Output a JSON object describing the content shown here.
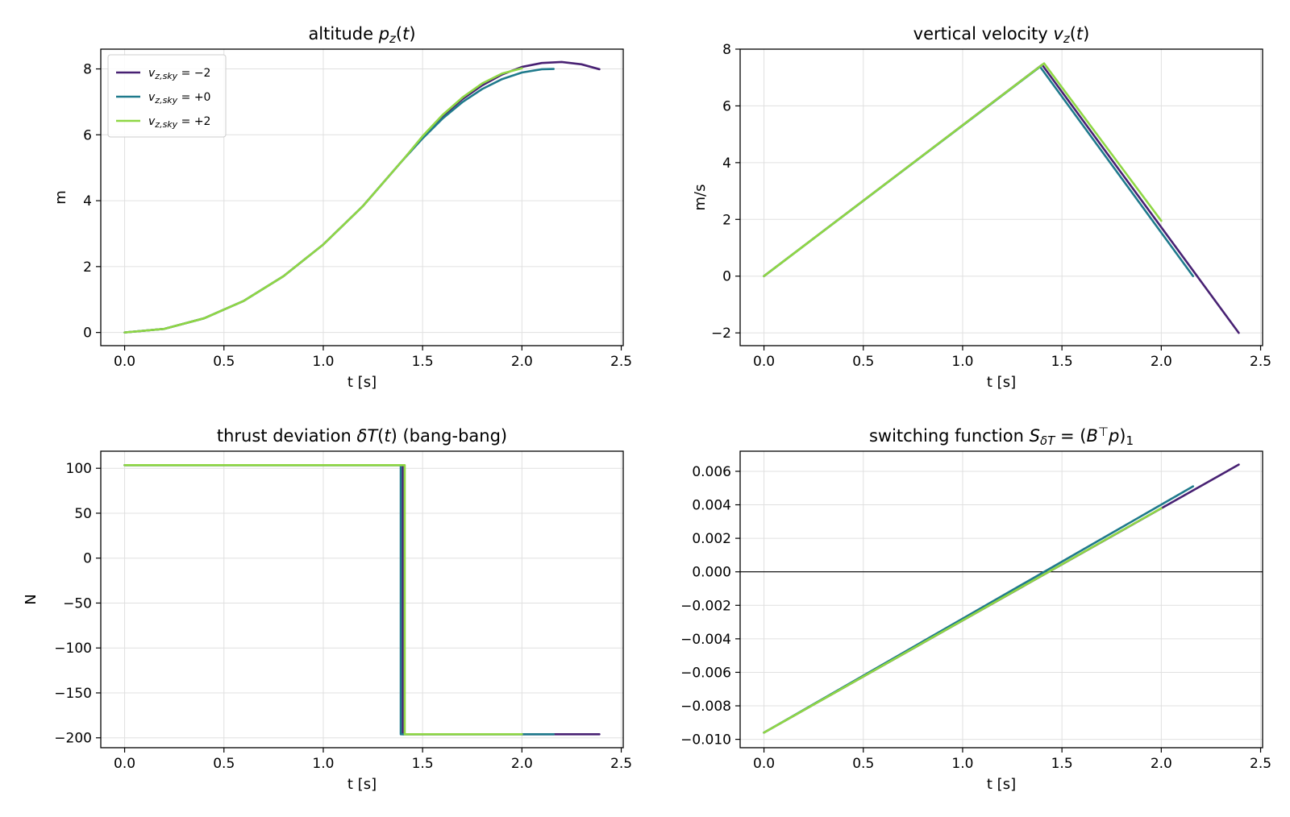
{
  "colors": {
    "vz_m2": "#482173",
    "vz_0": "#1f7a8c",
    "vz_p2": "#8fd744",
    "grid": "#e0e0e0",
    "zero_line": "#000000"
  },
  "chart_data": [
    {
      "type": "line",
      "title": "altitude p_z(t)",
      "title_parts": [
        {
          "text": "altitude ",
          "italic": false,
          "sub": false
        },
        {
          "text": "p",
          "italic": true,
          "sub": false
        },
        {
          "text": "z",
          "italic": true,
          "sub": true
        },
        {
          "text": "(",
          "italic": false,
          "sub": false
        },
        {
          "text": "t",
          "italic": true,
          "sub": false
        },
        {
          "text": ")",
          "italic": false,
          "sub": false
        }
      ],
      "xlabel": "t [s]",
      "ylabel": "m",
      "xlim": [
        -0.12,
        2.51
      ],
      "ylim": [
        -0.4,
        8.6
      ],
      "xticks": [
        0,
        0.5,
        1,
        1.5,
        2,
        2.5
      ],
      "xtick_labels": [
        "0.0",
        "0.5",
        "1.0",
        "1.5",
        "2.0",
        "2.5"
      ],
      "yticks": [
        0,
        2,
        4,
        6,
        8
      ],
      "ytick_labels": [
        "0",
        "2",
        "4",
        "6",
        "8"
      ],
      "grid": true,
      "legend": "top-left",
      "series": [
        {
          "name": "v_z,sky = −2",
          "color_key": "vz_m2",
          "x": [
            0,
            0.2,
            0.4,
            0.6,
            0.8,
            1.0,
            1.2,
            1.4,
            1.5,
            1.6,
            1.7,
            1.8,
            1.9,
            2.0,
            2.1,
            2.2,
            2.3,
            2.39
          ],
          "y": [
            0,
            0.11,
            0.43,
            0.96,
            1.71,
            2.67,
            3.84,
            5.23,
            5.94,
            6.56,
            7.08,
            7.5,
            7.83,
            8.06,
            8.18,
            8.21,
            8.14,
            7.99
          ]
        },
        {
          "name": "v_z,sky = +0",
          "color_key": "vz_0",
          "x": [
            0,
            0.2,
            0.4,
            0.6,
            0.8,
            1.0,
            1.2,
            1.39,
            1.5,
            1.6,
            1.7,
            1.8,
            1.9,
            2.0,
            2.1,
            2.16
          ],
          "y": [
            0,
            0.11,
            0.43,
            0.96,
            1.71,
            2.67,
            3.84,
            5.16,
            5.89,
            6.49,
            6.99,
            7.39,
            7.69,
            7.89,
            7.99,
            8.0
          ]
        },
        {
          "name": "v_z,sky = +2",
          "color_key": "vz_p2",
          "x": [
            0,
            0.2,
            0.4,
            0.6,
            0.8,
            1.0,
            1.2,
            1.41,
            1.5,
            1.6,
            1.7,
            1.8,
            1.9,
            2.0
          ],
          "y": [
            0,
            0.11,
            0.43,
            0.96,
            1.71,
            2.67,
            3.84,
            5.3,
            5.96,
            6.6,
            7.13,
            7.56,
            7.86,
            8.02
          ]
        }
      ],
      "legend_entries": [
        {
          "base": "v",
          "sub": "z,sky",
          "value": " = −2",
          "color_key": "vz_m2"
        },
        {
          "base": "v",
          "sub": "z,sky",
          "value": " = +0",
          "color_key": "vz_0"
        },
        {
          "base": "v",
          "sub": "z,sky",
          "value": " = +2",
          "color_key": "vz_p2"
        }
      ]
    },
    {
      "type": "line",
      "title": "vertical velocity v_z(t)",
      "title_parts": [
        {
          "text": "vertical velocity ",
          "italic": false,
          "sub": false
        },
        {
          "text": "v",
          "italic": true,
          "sub": false
        },
        {
          "text": "z",
          "italic": true,
          "sub": true
        },
        {
          "text": "(",
          "italic": false,
          "sub": false
        },
        {
          "text": "t",
          "italic": true,
          "sub": false
        },
        {
          "text": ")",
          "italic": false,
          "sub": false
        }
      ],
      "xlabel": "t [s]",
      "ylabel": "m/s",
      "xlim": [
        -0.12,
        2.51
      ],
      "ylim": [
        -2.45,
        8.0
      ],
      "xticks": [
        0,
        0.5,
        1,
        1.5,
        2,
        2.5
      ],
      "xtick_labels": [
        "0.0",
        "0.5",
        "1.0",
        "1.5",
        "2.0",
        "2.5"
      ],
      "yticks": [
        -2,
        0,
        2,
        4,
        6,
        8
      ],
      "ytick_labels": [
        "−2",
        "0",
        "2",
        "4",
        "6",
        "8"
      ],
      "grid": true,
      "series": [
        {
          "name": "v_z,sky = −2",
          "color_key": "vz_m2",
          "x": [
            0,
            1.4,
            2.39
          ],
          "y": [
            0,
            7.45,
            -2.0
          ]
        },
        {
          "name": "v_z,sky = +0",
          "color_key": "vz_0",
          "x": [
            0,
            1.39,
            2.16
          ],
          "y": [
            0,
            7.38,
            0.0
          ]
        },
        {
          "name": "v_z,sky = +2",
          "color_key": "vz_p2",
          "x": [
            0,
            1.41,
            2.0
          ],
          "y": [
            0,
            7.5,
            1.95
          ]
        }
      ]
    },
    {
      "type": "line",
      "title": "thrust deviation δT(t) (bang-bang)",
      "title_parts": [
        {
          "text": "thrust deviation ",
          "italic": false,
          "sub": false
        },
        {
          "text": "δT",
          "italic": true,
          "sub": false
        },
        {
          "text": "(",
          "italic": false,
          "sub": false
        },
        {
          "text": "t",
          "italic": true,
          "sub": false
        },
        {
          "text": ") (bang-bang)",
          "italic": false,
          "sub": false
        }
      ],
      "xlabel": "t [s]",
      "ylabel": "N",
      "xlim": [
        -0.12,
        2.51
      ],
      "ylim": [
        -211,
        119
      ],
      "xticks": [
        0,
        0.5,
        1,
        1.5,
        2,
        2.5
      ],
      "xtick_labels": [
        "0.0",
        "0.5",
        "1.0",
        "1.5",
        "2.0",
        "2.5"
      ],
      "yticks": [
        -200,
        -150,
        -100,
        -50,
        0,
        50,
        100
      ],
      "ytick_labels": [
        "−200",
        "−150",
        "−100",
        "−50",
        "0",
        "50",
        "100"
      ],
      "grid": true,
      "series": [
        {
          "name": "v_z,sky = −2",
          "color_key": "vz_m2",
          "x": [
            0,
            1.4,
            1.4,
            2.39
          ],
          "y": [
            103.5,
            103.5,
            -196,
            -196
          ]
        },
        {
          "name": "v_z,sky = +0",
          "color_key": "vz_0",
          "x": [
            0,
            1.39,
            1.39,
            2.16
          ],
          "y": [
            103.5,
            103.5,
            -196,
            -196
          ]
        },
        {
          "name": "v_z,sky = +2",
          "color_key": "vz_p2",
          "x": [
            0,
            1.41,
            1.41,
            2.0
          ],
          "y": [
            103.5,
            103.5,
            -196,
            -196
          ]
        }
      ]
    },
    {
      "type": "line",
      "title": "switching function S_δT = (B^⊤ p)_1",
      "title_parts": [
        {
          "text": "switching function ",
          "italic": false,
          "sub": false
        },
        {
          "text": "S",
          "italic": true,
          "sub": false
        },
        {
          "text": "δT",
          "italic": true,
          "sub": true
        },
        {
          "text": " = (",
          "italic": false,
          "sub": false
        },
        {
          "text": "B",
          "italic": true,
          "sub": false
        },
        {
          "text": "⊤",
          "italic": false,
          "sup": true
        },
        {
          "text": "p",
          "italic": true,
          "sub": false
        },
        {
          "text": ")",
          "italic": false,
          "sub": false
        },
        {
          "text": "1",
          "italic": false,
          "sub": true
        }
      ],
      "xlabel": "t [s]",
      "ylabel": "",
      "xlim": [
        -0.12,
        2.51
      ],
      "ylim": [
        -0.0105,
        0.0072
      ],
      "xticks": [
        0,
        0.5,
        1,
        1.5,
        2,
        2.5
      ],
      "xtick_labels": [
        "0.0",
        "0.5",
        "1.0",
        "1.5",
        "2.0",
        "2.5"
      ],
      "yticks": [
        -0.01,
        -0.008,
        -0.006,
        -0.004,
        -0.002,
        0,
        0.002,
        0.004,
        0.006
      ],
      "ytick_labels": [
        "−0.010",
        "−0.008",
        "−0.006",
        "−0.004",
        "−0.002",
        "0.000",
        "0.002",
        "0.004",
        "0.006"
      ],
      "grid": true,
      "hline": 0,
      "series": [
        {
          "name": "v_z,sky = −2",
          "color_key": "vz_m2",
          "x": [
            0,
            2.39
          ],
          "y": [
            -0.0096,
            0.0064
          ]
        },
        {
          "name": "v_z,sky = +0",
          "color_key": "vz_0",
          "x": [
            0,
            2.16
          ],
          "y": [
            -0.0096,
            0.0051
          ]
        },
        {
          "name": "v_z,sky = +2",
          "color_key": "vz_p2",
          "x": [
            0,
            2.0
          ],
          "y": [
            -0.0096,
            0.0038
          ]
        }
      ]
    }
  ]
}
